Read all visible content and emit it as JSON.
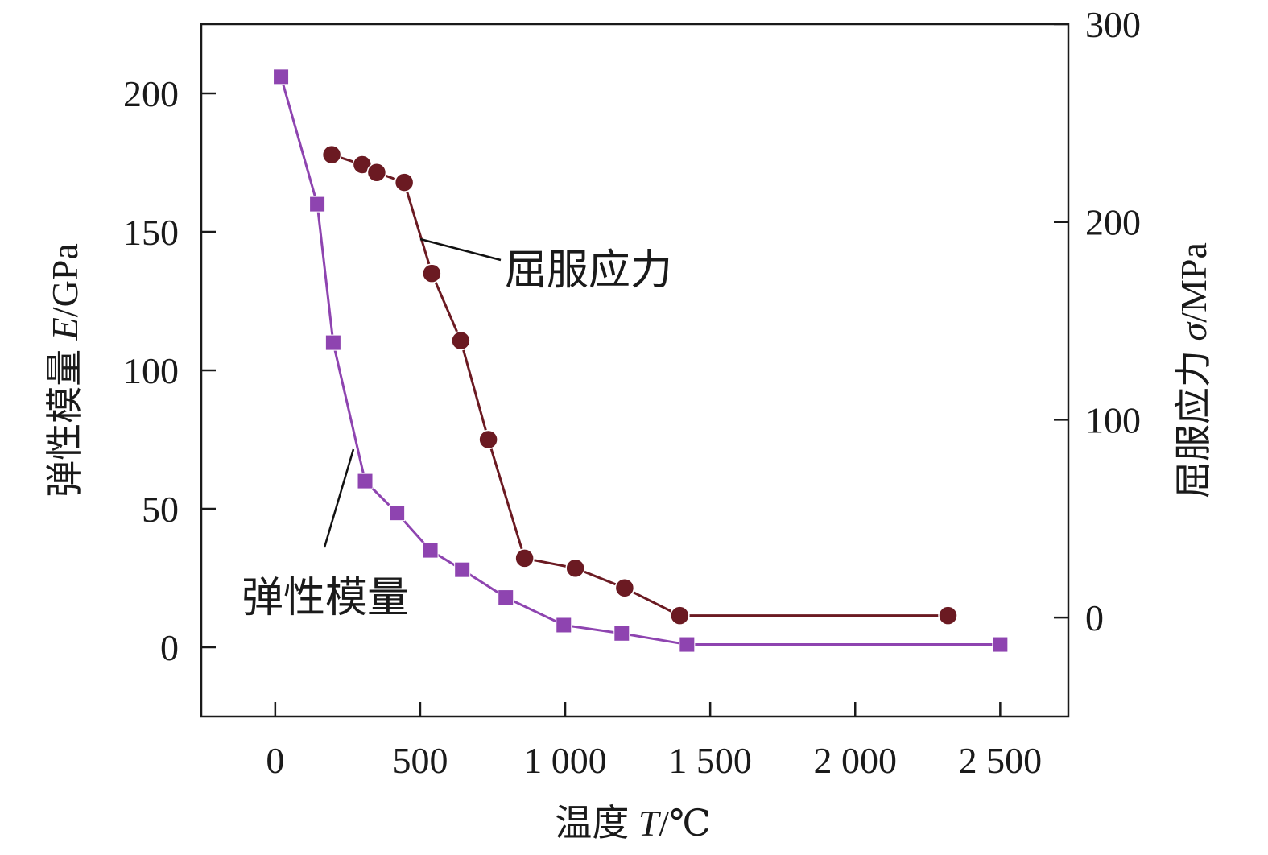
{
  "chart_data": {
    "type": "line",
    "xlabel": {
      "main": "温度 ",
      "italic": "T",
      "unit": "/℃"
    },
    "ylabel_left": {
      "main": "弹性模量 ",
      "italic": "E",
      "unit": "/GPa"
    },
    "ylabel_right": {
      "main": "屈服应力 ",
      "italic": "σ",
      "unit": "/MPa"
    },
    "x_range": [
      -255,
      2735
    ],
    "y_left_range": [
      -25,
      225
    ],
    "y_right_range": [
      -50,
      300
    ],
    "x_ticks": [
      {
        "value": 0,
        "label": "0"
      },
      {
        "value": 500,
        "label": "500"
      },
      {
        "value": 1000,
        "label": "1 000"
      },
      {
        "value": 1500,
        "label": "1 500"
      },
      {
        "value": 2000,
        "label": "2 000"
      },
      {
        "value": 2500,
        "label": "2 500"
      }
    ],
    "y_left_ticks": [
      {
        "value": 0,
        "label": "0"
      },
      {
        "value": 50,
        "label": "50"
      },
      {
        "value": 100,
        "label": "100"
      },
      {
        "value": 150,
        "label": "150"
      },
      {
        "value": 200,
        "label": "200"
      }
    ],
    "y_right_ticks": [
      {
        "value": 0,
        "label": "0"
      },
      {
        "value": 100,
        "label": "100"
      },
      {
        "value": 200,
        "label": "200"
      },
      {
        "value": 300,
        "label": "300"
      }
    ],
    "grid": false,
    "legend": "none",
    "series": [
      {
        "name": "弹性模量",
        "axis": "left",
        "marker": "square",
        "color": "#8e44b0",
        "x": [
          20,
          145,
          200,
          310,
          420,
          535,
          645,
          795,
          995,
          1195,
          1420,
          2500
        ],
        "y": [
          206,
          160,
          110,
          60,
          48.5,
          35,
          28,
          18,
          8,
          5,
          1,
          1
        ]
      },
      {
        "name": "屈服应力",
        "axis": "right",
        "marker": "circle",
        "color": "#6b1a22",
        "x": [
          195,
          300,
          350,
          445,
          540,
          640,
          735,
          860,
          1035,
          1205,
          1395,
          2320
        ],
        "y": [
          234,
          229,
          225,
          220,
          174,
          140,
          90,
          30,
          25,
          15,
          1,
          1
        ]
      }
    ],
    "annotations": [
      {
        "id": "annotation-yield-stress",
        "text": "屈服应力"
      },
      {
        "id": "annotation-elastic-modulus",
        "text": "弹性模量"
      }
    ]
  }
}
